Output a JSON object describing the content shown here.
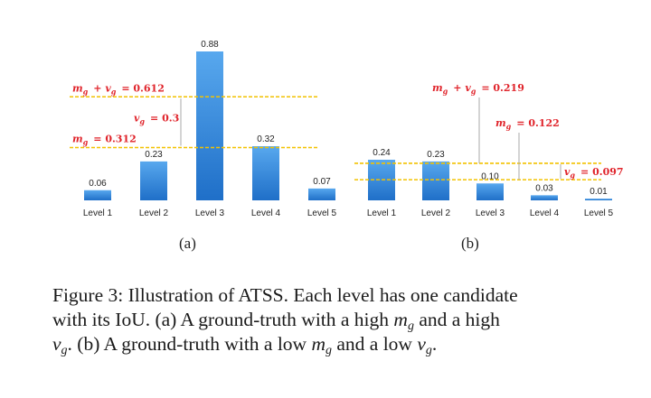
{
  "chart_data": [
    {
      "type": "bar",
      "label": "(a)",
      "categories": [
        "Level 1",
        "Level 2",
        "Level 3",
        "Level 4",
        "Level 5"
      ],
      "values": [
        0.06,
        0.23,
        0.88,
        0.32,
        0.07
      ],
      "value_labels": [
        "0.06",
        "0.23",
        "0.88",
        "0.32",
        "0.07"
      ],
      "ylim": [
        0,
        0.88
      ],
      "lines": [
        {
          "value": 0.612,
          "label": "m_g + v_g = 0.612",
          "color": "#f2c200"
        },
        {
          "value": 0.312,
          "label": "m_g = 0.312",
          "color": "#f2c200"
        }
      ],
      "std_annotation": {
        "label": "v_g = 0.3",
        "from": 0.312,
        "to": 0.612
      },
      "annotation_color": "#e0242b"
    },
    {
      "type": "bar",
      "label": "(b)",
      "categories": [
        "Level 1",
        "Level 2",
        "Level 3",
        "Level 4",
        "Level 5"
      ],
      "values": [
        0.24,
        0.23,
        0.1,
        0.03,
        0.01
      ],
      "value_labels": [
        "0.24",
        "0.23",
        "0.10",
        "0.03",
        "0.01"
      ],
      "ylim": [
        0,
        0.88
      ],
      "lines": [
        {
          "value": 0.219,
          "label": "m_g + v_g = 0.219",
          "color": "#f2c200"
        },
        {
          "value": 0.122,
          "label": "m_g = 0.122",
          "color": "#f2c200"
        }
      ],
      "std_annotation": {
        "label": "v_g = 0.097",
        "from": 0.122,
        "to": 0.219
      },
      "annotation_color": "#e0242b"
    }
  ],
  "caption": {
    "line1": "Figure 3: Illustration of ATSS. Each level has one candidate",
    "line2_a": "with its IoU. (a) A ground-truth with a high ",
    "line2_b": " and a high",
    "line3_a": ". (b) A ground-truth with a low ",
    "line3_b": " and a low ",
    "line3_c": ".",
    "m": "m",
    "v": "v",
    "sub": "g"
  }
}
